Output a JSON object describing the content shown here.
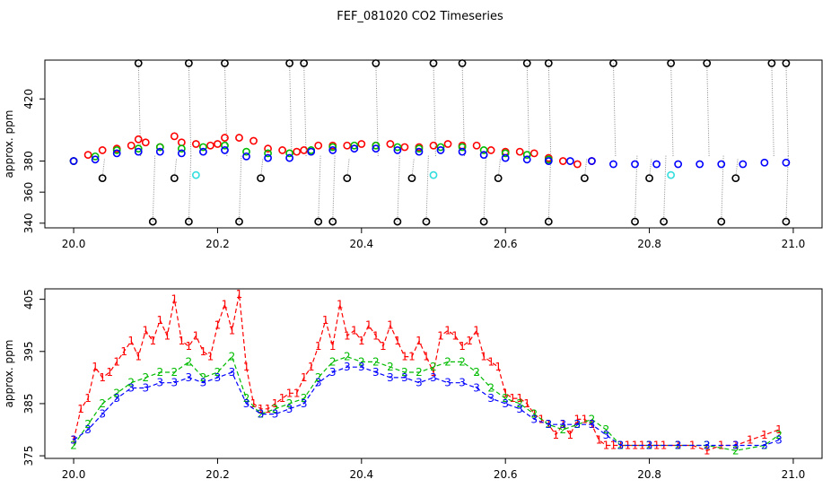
{
  "figure": {
    "title": "FEF_081020  CO2 Timeseries"
  },
  "colors": {
    "series1": "#ff0000",
    "series2": "#00bb00",
    "series3": "#0000ff",
    "outlier": "#000000",
    "flagged": "#33dddd"
  },
  "chart_data": [
    {
      "type": "scatter",
      "title": "",
      "xlabel": "",
      "ylabel": "approx. ppm",
      "xlim": [
        19.96,
        21.04
      ],
      "ylim": [
        337,
        445
      ],
      "xticks": [
        "20.0",
        "20.2",
        "20.4",
        "20.6",
        "20.8",
        "21.0"
      ],
      "yticks": [
        "340",
        "360",
        "380",
        "420"
      ],
      "series": [
        {
          "name": "",
          "symbol": "o",
          "color": "red",
          "x": [
            20.0,
            20.02,
            20.04,
            20.06,
            20.08,
            20.09,
            20.1,
            20.12,
            20.14,
            20.15,
            20.17,
            20.19,
            20.2,
            20.21,
            20.23,
            20.25,
            20.27,
            20.29,
            20.31,
            20.32,
            20.34,
            20.36,
            20.38,
            20.4,
            20.42,
            20.44,
            20.46,
            20.48,
            20.5,
            20.52,
            20.54,
            20.56,
            20.58,
            20.6,
            20.62,
            20.64,
            20.66,
            20.68,
            20.7,
            20.72
          ],
          "y": [
            380,
            384,
            387,
            388,
            390,
            394,
            392,
            389,
            396,
            392,
            391,
            390,
            391,
            395,
            395,
            393,
            388,
            387,
            386,
            387,
            390,
            390,
            390,
            391,
            390,
            391,
            389,
            389,
            390,
            391,
            390,
            390,
            387,
            386,
            386,
            385,
            382,
            380,
            378,
            380
          ]
        },
        {
          "name": "",
          "symbol": "o",
          "color": "green",
          "x": [
            20.0,
            20.03,
            20.06,
            20.09,
            20.12,
            20.15,
            20.18,
            20.21,
            20.24,
            20.27,
            20.3,
            20.33,
            20.36,
            20.39,
            20.42,
            20.45,
            20.48,
            20.51,
            20.54,
            20.57,
            20.6,
            20.63,
            20.66
          ],
          "y": [
            380,
            383,
            387,
            388,
            389,
            388,
            389,
            390,
            386,
            385,
            385,
            387,
            389,
            390,
            390,
            389,
            388,
            389,
            389,
            387,
            385,
            384,
            381
          ]
        },
        {
          "name": "",
          "symbol": "o",
          "color": "blue",
          "x": [
            20.0,
            20.03,
            20.06,
            20.09,
            20.12,
            20.15,
            20.18,
            20.21,
            20.24,
            20.27,
            20.3,
            20.33,
            20.36,
            20.39,
            20.42,
            20.45,
            20.48,
            20.51,
            20.54,
            20.57,
            20.6,
            20.63,
            20.66,
            20.69,
            20.72,
            20.75,
            20.78,
            20.81,
            20.84,
            20.87,
            20.9,
            20.93,
            20.96,
            20.99
          ],
          "y": [
            380,
            381,
            385,
            386,
            386,
            385,
            386,
            387,
            383,
            382,
            382,
            386,
            387,
            388,
            388,
            387,
            386,
            387,
            386,
            384,
            382,
            381,
            380,
            380,
            380,
            378,
            378,
            378,
            378,
            378,
            378,
            378,
            379,
            379
          ]
        },
        {
          "name": "",
          "symbol": "o",
          "color": "black",
          "x": [
            20.09,
            20.16,
            20.21,
            20.3,
            20.32,
            20.42,
            20.5,
            20.54,
            20.63,
            20.66,
            20.75,
            20.83,
            20.88,
            20.97,
            20.99,
            20.11,
            20.16,
            20.23,
            20.34,
            20.36,
            20.45,
            20.49,
            20.57,
            20.66,
            20.78,
            20.82,
            20.9,
            20.99,
            20.04,
            20.14,
            20.26,
            20.38,
            20.47,
            20.59,
            20.71,
            20.8,
            20.92
          ],
          "y": [
            443,
            443,
            443,
            443,
            443,
            443,
            443,
            443,
            443,
            443,
            443,
            443,
            443,
            443,
            443,
            341,
            341,
            341,
            341,
            341,
            341,
            341,
            341,
            341,
            341,
            341,
            341,
            341,
            369,
            369,
            369,
            369,
            369,
            369,
            369,
            369,
            369
          ]
        },
        {
          "name": "",
          "symbol": "o",
          "color": "cyan",
          "x": [
            20.17,
            20.5,
            20.83
          ],
          "y": [
            371,
            371,
            371
          ]
        }
      ]
    },
    {
      "type": "line",
      "title": "",
      "xlabel": "",
      "ylabel": "approx. ppm",
      "xlim": [
        19.96,
        21.04
      ],
      "ylim": [
        374.5,
        407
      ],
      "xticks": [
        "20.0",
        "20.2",
        "20.4",
        "20.6",
        "20.8",
        "21.0"
      ],
      "yticks": [
        "375",
        "385",
        "395",
        "405"
      ],
      "series": [
        {
          "name": "",
          "symbol": "1",
          "color": "red",
          "x": [
            20.0,
            20.01,
            20.02,
            20.03,
            20.04,
            20.05,
            20.06,
            20.07,
            20.08,
            20.09,
            20.1,
            20.11,
            20.12,
            20.13,
            20.14,
            20.15,
            20.16,
            20.17,
            20.18,
            20.19,
            20.2,
            20.21,
            20.22,
            20.23,
            20.24,
            20.25,
            20.26,
            20.27,
            20.28,
            20.29,
            20.3,
            20.31,
            20.32,
            20.33,
            20.34,
            20.35,
            20.36,
            20.37,
            20.38,
            20.39,
            20.4,
            20.41,
            20.42,
            20.43,
            20.44,
            20.45,
            20.46,
            20.47,
            20.48,
            20.49,
            20.5,
            20.51,
            20.52,
            20.53,
            20.54,
            20.55,
            20.56,
            20.57,
            20.58,
            20.59,
            20.6,
            20.61,
            20.62,
            20.63,
            20.64,
            20.65,
            20.66,
            20.67,
            20.68,
            20.69,
            20.7,
            20.71,
            20.72,
            20.73,
            20.74,
            20.75,
            20.76,
            20.77,
            20.78,
            20.79,
            20.8,
            20.81,
            20.82,
            20.84,
            20.86,
            20.88,
            20.9,
            20.92,
            20.94,
            20.96,
            20.98
          ],
          "y": [
            378,
            384,
            386,
            392,
            390,
            391,
            393,
            395,
            397,
            394,
            399,
            397,
            401,
            398,
            405,
            397,
            396,
            398,
            395,
            394,
            400,
            404,
            399,
            406,
            392,
            385,
            384,
            384,
            385,
            386,
            387,
            387,
            390,
            392,
            396,
            401,
            396,
            404,
            398,
            399,
            397,
            400,
            398,
            396,
            400,
            397,
            394,
            394,
            397,
            394,
            391,
            398,
            399,
            398,
            396,
            397,
            399,
            394,
            393,
            392,
            387,
            386,
            386,
            385,
            383,
            382,
            381,
            379,
            381,
            379,
            382,
            382,
            381,
            378,
            377,
            377,
            377,
            377,
            377,
            377,
            377,
            377,
            377,
            377,
            377,
            376,
            377,
            377,
            378,
            379,
            380
          ]
        },
        {
          "name": "",
          "symbol": "2",
          "color": "green",
          "x": [
            20.0,
            20.02,
            20.04,
            20.06,
            20.08,
            20.1,
            20.12,
            20.14,
            20.16,
            20.18,
            20.2,
            20.22,
            20.24,
            20.26,
            20.28,
            20.3,
            20.32,
            20.34,
            20.36,
            20.38,
            20.4,
            20.42,
            20.44,
            20.46,
            20.48,
            20.5,
            20.52,
            20.54,
            20.56,
            20.58,
            20.6,
            20.62,
            20.64,
            20.66,
            20.68,
            20.7,
            20.72,
            20.74,
            20.76,
            20.8,
            20.84,
            20.88,
            20.92,
            20.96,
            20.98
          ],
          "y": [
            377,
            381,
            385,
            387,
            389,
            390,
            391,
            391,
            393,
            390,
            391,
            394,
            386,
            383,
            384,
            385,
            386,
            390,
            393,
            394,
            393,
            393,
            392,
            391,
            391,
            392,
            393,
            393,
            391,
            388,
            386,
            385,
            383,
            381,
            380,
            381,
            382,
            380,
            377,
            377,
            377,
            377,
            376,
            377,
            379
          ]
        },
        {
          "name": "",
          "symbol": "3",
          "color": "blue",
          "x": [
            20.0,
            20.02,
            20.04,
            20.06,
            20.08,
            20.1,
            20.12,
            20.14,
            20.16,
            20.18,
            20.2,
            20.22,
            20.24,
            20.26,
            20.28,
            20.3,
            20.32,
            20.34,
            20.36,
            20.38,
            20.4,
            20.42,
            20.44,
            20.46,
            20.48,
            20.5,
            20.52,
            20.54,
            20.56,
            20.58,
            20.6,
            20.62,
            20.64,
            20.66,
            20.68,
            20.7,
            20.72,
            20.74,
            20.76,
            20.8,
            20.84,
            20.88,
            20.92,
            20.96,
            20.98
          ],
          "y": [
            378,
            380,
            383,
            386,
            388,
            388,
            389,
            389,
            390,
            389,
            390,
            391,
            385,
            383,
            383,
            384,
            385,
            389,
            391,
            392,
            392,
            391,
            390,
            390,
            389,
            390,
            389,
            389,
            388,
            386,
            385,
            384,
            382,
            381,
            381,
            381,
            381,
            379,
            377,
            377,
            377,
            377,
            377,
            377,
            378
          ]
        }
      ]
    }
  ]
}
